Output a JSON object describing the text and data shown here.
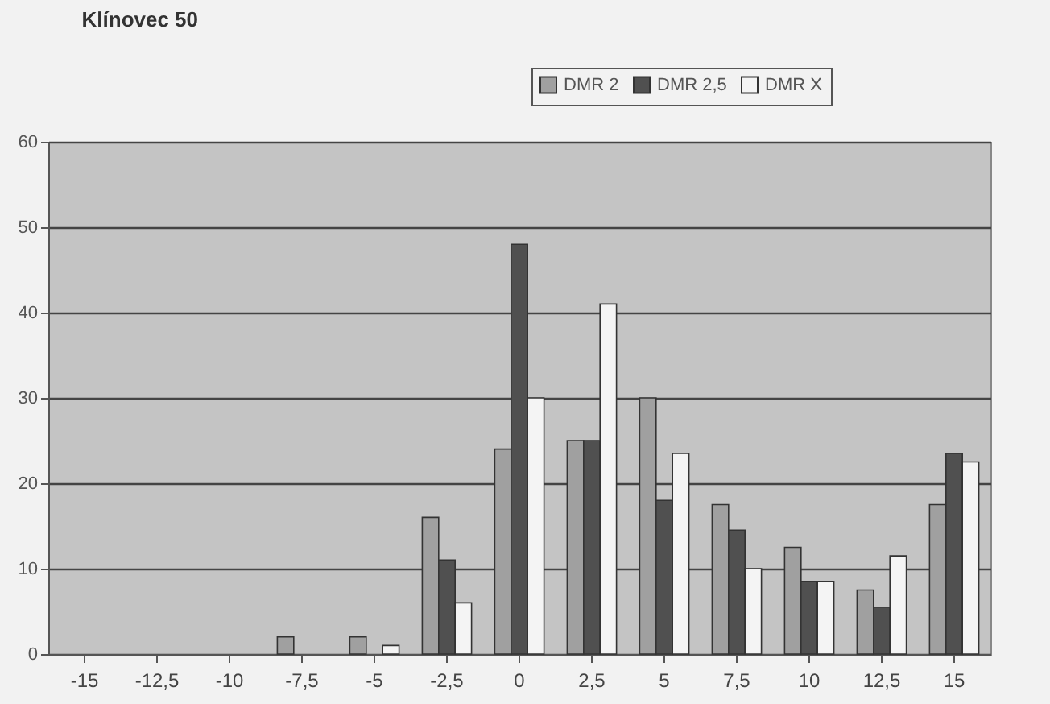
{
  "chart_data": {
    "type": "bar",
    "title": "Klínovec 50",
    "categories": [
      "-15",
      "-12,5",
      "-10",
      "-7,5",
      "-5",
      "-2,5",
      "0",
      "2,5",
      "5",
      "7,5",
      "10",
      "12,5",
      "15"
    ],
    "series": [
      {
        "name": "DMR 2",
        "color": "#a0a0a0",
        "values": [
          null,
          null,
          null,
          2,
          2,
          16,
          24,
          25,
          30,
          17.5,
          12.5,
          7.5,
          17.5
        ]
      },
      {
        "name": "DMR 2,5",
        "color": "#505050",
        "values": [
          null,
          null,
          null,
          null,
          null,
          11,
          48,
          25,
          18,
          14.5,
          8.5,
          5.5,
          23.5
        ]
      },
      {
        "name": "DMR X",
        "color": "#f4f4f4",
        "values": [
          null,
          null,
          null,
          null,
          1,
          6,
          30,
          41,
          23.5,
          10,
          8.5,
          11.5,
          22.5
        ]
      }
    ],
    "ylim": [
      0,
      60
    ],
    "yticks": [
      0,
      10,
      20,
      30,
      40,
      50,
      60
    ],
    "grid": "y",
    "legend": "top right"
  }
}
